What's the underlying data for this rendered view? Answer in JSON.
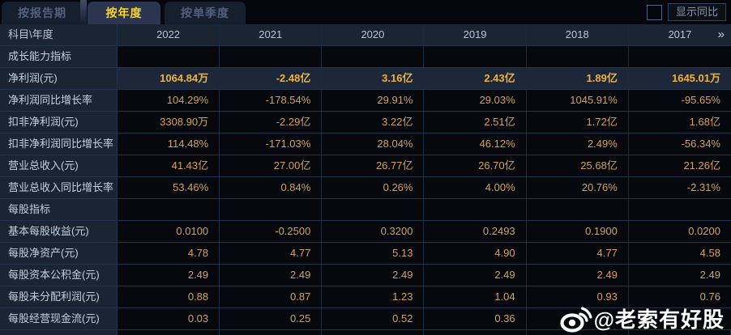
{
  "tabs": {
    "items": [
      {
        "label": "按报告期",
        "active": false
      },
      {
        "label": "按年度",
        "active": true
      },
      {
        "label": "按单季度",
        "active": false
      }
    ]
  },
  "controls": {
    "compare_label": "显示同比",
    "checkbox_checked": false
  },
  "table": {
    "corner_label": "科目\\年度",
    "years": [
      "2022",
      "2021",
      "2020",
      "2019",
      "2018",
      "2017"
    ],
    "more_years_icon": "»",
    "rows": [
      {
        "type": "section",
        "label": "成长能力指标",
        "values": [
          "",
          "",
          "",
          "",
          "",
          ""
        ]
      },
      {
        "type": "highlight",
        "label": "净利润(元)",
        "values": [
          "1064.84万",
          "-2.48亿",
          "3.16亿",
          "2.43亿",
          "1.89亿",
          "1645.01万"
        ]
      },
      {
        "type": "normal",
        "label": "净利润同比增长率",
        "values": [
          "104.29%",
          "-178.54%",
          "29.91%",
          "29.03%",
          "1045.91%",
          "-95.65%"
        ]
      },
      {
        "type": "normal",
        "label": "扣非净利润(元)",
        "values": [
          "3308.90万",
          "-2.29亿",
          "3.22亿",
          "2.51亿",
          "1.72亿",
          "1.68亿"
        ]
      },
      {
        "type": "normal",
        "label": "扣非净利润同比增长率",
        "values": [
          "114.48%",
          "-171.03%",
          "28.04%",
          "46.12%",
          "2.49%",
          "-56.34%"
        ]
      },
      {
        "type": "normal",
        "label": "营业总收入(元)",
        "values": [
          "41.43亿",
          "27.00亿",
          "26.77亿",
          "26.70亿",
          "25.68亿",
          "21.26亿"
        ]
      },
      {
        "type": "normal",
        "label": "营业总收入同比增长率",
        "values": [
          "53.46%",
          "0.84%",
          "0.26%",
          "4.00%",
          "20.76%",
          "-2.31%"
        ]
      },
      {
        "type": "section",
        "label": "每股指标",
        "values": [
          "",
          "",
          "",
          "",
          "",
          ""
        ]
      },
      {
        "type": "normal",
        "label": "基本每股收益(元)",
        "values": [
          "0.0100",
          "-0.2500",
          "0.3200",
          "0.2493",
          "0.1900",
          "0.0200"
        ]
      },
      {
        "type": "normal",
        "label": "每股净资产(元)",
        "values": [
          "4.78",
          "4.77",
          "5.13",
          "4.90",
          "4.77",
          "4.58"
        ]
      },
      {
        "type": "normal",
        "label": "每股资本公积金(元)",
        "values": [
          "2.49",
          "2.49",
          "2.49",
          "2.49",
          "2.49",
          "2.49"
        ]
      },
      {
        "type": "normal",
        "label": "每股未分配利润(元)",
        "values": [
          "0.88",
          "0.87",
          "1.23",
          "1.04",
          "0.93",
          "0.76"
        ]
      },
      {
        "type": "normal",
        "label": "每股经营现金流(元)",
        "values": [
          "0.03",
          "0.25",
          "0.52",
          "0.36",
          "",
          ""
        ]
      }
    ]
  },
  "watermark": {
    "text": "@老索有好股",
    "icon": "weibo-icon"
  },
  "colors": {
    "background": "#04060b",
    "panel_blue": "#1b2433",
    "cell_background": "#06080d",
    "highlight_row_background": "#1c2839",
    "value_gold": "#d2a35c",
    "highlight_gold": "#f0b13c",
    "active_tab_text": "#ffd41e",
    "border": "#233349"
  }
}
